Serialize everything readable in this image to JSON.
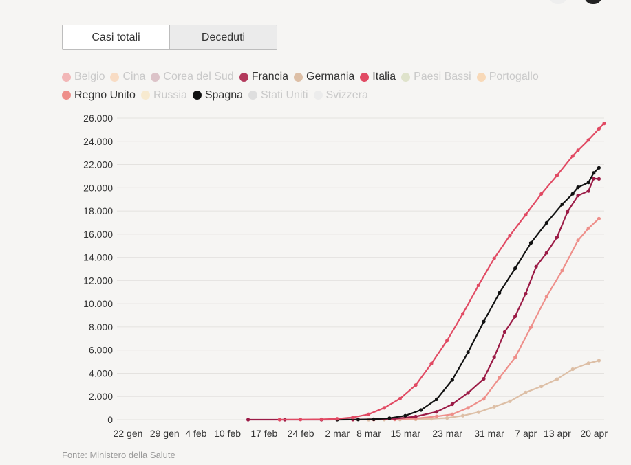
{
  "tabs": [
    {
      "label": "Casi totali",
      "active": true
    },
    {
      "label": "Deceduti",
      "active": false
    }
  ],
  "legend": [
    {
      "label": "Belgio",
      "color": "#f2b7b7",
      "active": false
    },
    {
      "label": "Cina",
      "color": "#f8dcc4",
      "active": false
    },
    {
      "label": "Corea del Sud",
      "color": "#dcc3c8",
      "active": false
    },
    {
      "label": "Francia",
      "color": "#b33a5c",
      "active": true
    },
    {
      "label": "Germania",
      "color": "#ddbfa6",
      "active": true
    },
    {
      "label": "Italia",
      "color": "#e14a63",
      "active": true
    },
    {
      "label": "Paesi Bassi",
      "color": "#dfe3cb",
      "active": false
    },
    {
      "label": "Portogallo",
      "color": "#f8d9b8",
      "active": false
    },
    {
      "label": "Regno Unito",
      "color": "#ee8f8a",
      "active": true
    },
    {
      "label": "Russia",
      "color": "#f7ead0",
      "active": false
    },
    {
      "label": "Spagna",
      "color": "#111111",
      "active": true
    },
    {
      "label": "Stati Uniti",
      "color": "#dedede",
      "active": false
    },
    {
      "label": "Svizzera",
      "color": "#ececec",
      "active": false
    }
  ],
  "source": "Fonte: Ministero della Salute",
  "chart_data": {
    "type": "line",
    "x_start": "2020-01-22",
    "x_ticks": [
      {
        "date": "2020-01-22",
        "label": "22 gen"
      },
      {
        "date": "2020-01-29",
        "label": "29 gen"
      },
      {
        "date": "2020-02-04",
        "label": "4 feb"
      },
      {
        "date": "2020-02-10",
        "label": "10 feb"
      },
      {
        "date": "2020-02-17",
        "label": "17 feb"
      },
      {
        "date": "2020-02-24",
        "label": "24 feb"
      },
      {
        "date": "2020-03-02",
        "label": "2 mar"
      },
      {
        "date": "2020-03-08",
        "label": "8 mar"
      },
      {
        "date": "2020-03-15",
        "label": "15 mar"
      },
      {
        "date": "2020-03-23",
        "label": "23 mar"
      },
      {
        "date": "2020-03-31",
        "label": "31 mar"
      },
      {
        "date": "2020-04-07",
        "label": "7 apr"
      },
      {
        "date": "2020-04-13",
        "label": "13 apr"
      },
      {
        "date": "2020-04-20",
        "label": "20 apr"
      }
    ],
    "y_ticks": [
      {
        "value": 0,
        "label": "0"
      },
      {
        "value": 2000,
        "label": "2.000"
      },
      {
        "value": 4000,
        "label": "4.000"
      },
      {
        "value": 6000,
        "label": "6.000"
      },
      {
        "value": 8000,
        "label": "8.000"
      },
      {
        "value": 10000,
        "label": "10.000"
      },
      {
        "value": 12000,
        "label": "12.000"
      },
      {
        "value": 14000,
        "label": "14.000"
      },
      {
        "value": 16000,
        "label": "16.000"
      },
      {
        "value": 18000,
        "label": "18.000"
      },
      {
        "value": 20000,
        "label": "20.000"
      },
      {
        "value": 22000,
        "label": "22.000"
      },
      {
        "value": 24000,
        "label": "24.000"
      },
      {
        "value": 26000,
        "label": "26.000"
      }
    ],
    "x_range": [
      "2020-01-22",
      "2020-04-23"
    ],
    "ylim": [
      0,
      26000
    ],
    "series": [
      {
        "name": "Germania",
        "color": "#ddbfa6",
        "x": [
          "2020-03-09",
          "2020-03-12",
          "2020-03-15",
          "2020-03-18",
          "2020-03-21",
          "2020-03-24",
          "2020-03-27",
          "2020-03-30",
          "2020-04-02",
          "2020-04-05",
          "2020-04-08",
          "2020-04-11",
          "2020-04-14",
          "2020-04-17",
          "2020-04-20",
          "2020-04-22"
        ],
        "y": [
          2,
          6,
          12,
          28,
          84,
          149,
          342,
          645,
          1107,
          1584,
          2349,
          2871,
          3495,
          4352,
          4862,
          5094
        ]
      },
      {
        "name": "Regno Unito",
        "color": "#ee8f8a",
        "x": [
          "2020-03-06",
          "2020-03-10",
          "2020-03-14",
          "2020-03-18",
          "2020-03-22",
          "2020-03-25",
          "2020-03-28",
          "2020-03-31",
          "2020-04-03",
          "2020-04-06",
          "2020-04-09",
          "2020-04-12",
          "2020-04-15",
          "2020-04-18",
          "2020-04-20",
          "2020-04-22"
        ],
        "y": [
          1,
          6,
          21,
          104,
          282,
          463,
          1019,
          1789,
          3605,
          5373,
          7978,
          10612,
          12868,
          15464,
          16509,
          17337
        ]
      },
      {
        "name": "Francia",
        "color": "#9b1b46",
        "x": [
          "2020-02-15",
          "2020-02-22",
          "2020-02-29",
          "2020-03-06",
          "2020-03-10",
          "2020-03-14",
          "2020-03-18",
          "2020-03-22",
          "2020-03-25",
          "2020-03-28",
          "2020-03-31",
          "2020-04-02",
          "2020-04-04",
          "2020-04-06",
          "2020-04-08",
          "2020-04-10",
          "2020-04-12",
          "2020-04-14",
          "2020-04-16",
          "2020-04-18",
          "2020-04-20",
          "2020-04-21",
          "2020-04-22"
        ],
        "y": [
          1,
          1,
          2,
          9,
          33,
          91,
          264,
          674,
          1331,
          2314,
          3523,
          5387,
          7560,
          8911,
          10869,
          13197,
          14393,
          15729,
          17920,
          19323,
          19718,
          20796,
          20765
        ]
      },
      {
        "name": "Spagna",
        "color": "#111111",
        "x": [
          "2020-03-03",
          "2020-03-07",
          "2020-03-10",
          "2020-03-13",
          "2020-03-16",
          "2020-03-19",
          "2020-03-22",
          "2020-03-25",
          "2020-03-28",
          "2020-03-31",
          "2020-04-03",
          "2020-04-06",
          "2020-04-09",
          "2020-04-12",
          "2020-04-15",
          "2020-04-17",
          "2020-04-18",
          "2020-04-20",
          "2020-04-21",
          "2020-04-22"
        ],
        "y": [
          1,
          10,
          35,
          133,
          342,
          830,
          1756,
          3434,
          5812,
          8464,
          10935,
          13055,
          15238,
          16972,
          18579,
          19478,
          20043,
          20453,
          21282,
          21717
        ]
      },
      {
        "name": "Italia",
        "color": "#e14a63",
        "x": [
          "2020-02-21",
          "2020-02-25",
          "2020-02-29",
          "2020-03-03",
          "2020-03-06",
          "2020-03-09",
          "2020-03-12",
          "2020-03-15",
          "2020-03-18",
          "2020-03-21",
          "2020-03-24",
          "2020-03-27",
          "2020-03-30",
          "2020-04-02",
          "2020-04-05",
          "2020-04-08",
          "2020-04-11",
          "2020-04-14",
          "2020-04-17",
          "2020-04-18",
          "2020-04-20",
          "2020-04-22",
          "2020-04-23"
        ],
        "y": [
          1,
          11,
          29,
          79,
          197,
          463,
          1016,
          1809,
          2978,
          4825,
          6820,
          9134,
          11591,
          13915,
          15887,
          17669,
          19468,
          21067,
          22745,
          23227,
          24114,
          25085,
          25549
        ]
      }
    ]
  }
}
